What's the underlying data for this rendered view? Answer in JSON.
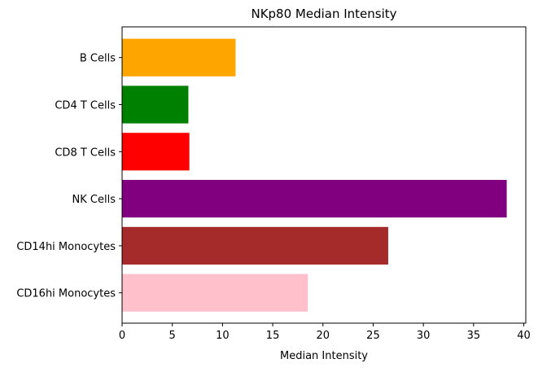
{
  "chart_data": {
    "type": "bar",
    "orientation": "horizontal",
    "title": "NKp80 Median Intensity",
    "xlabel": "Median Intensity",
    "ylabel": "",
    "categories": [
      "B Cells",
      "CD4 T Cells",
      "CD8 T Cells",
      "NK Cells",
      "CD14hi Monocytes",
      "CD16hi Monocytes"
    ],
    "values": [
      11.3,
      6.6,
      6.7,
      38.3,
      26.5,
      18.5
    ],
    "colors": [
      "#ffa500",
      "#008000",
      "#ff0000",
      "#800080",
      "#a52a2a",
      "#ffc0cb"
    ],
    "xlim": [
      0,
      40.2
    ],
    "xticks": [
      0,
      5,
      10,
      15,
      20,
      25,
      30,
      35,
      40
    ],
    "grid": false,
    "legend": "none"
  }
}
